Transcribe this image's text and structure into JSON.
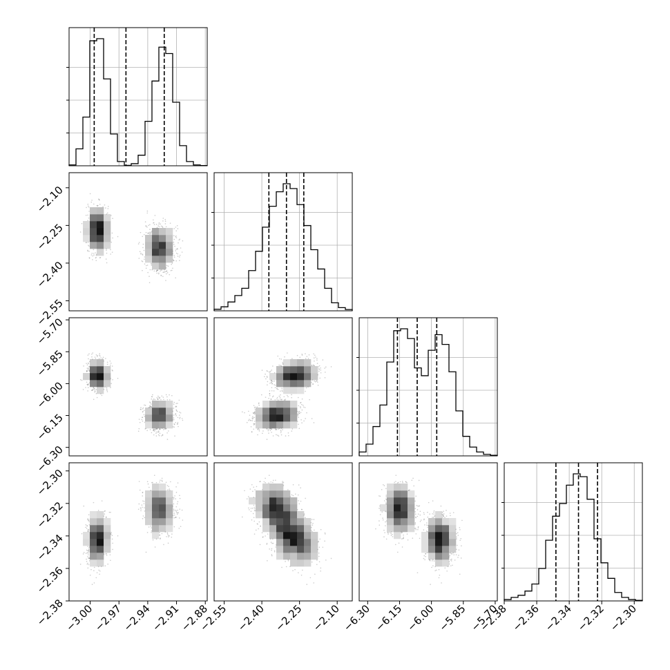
{
  "chart_data": {
    "type": "corner",
    "grid": true,
    "params": [
      {
        "range": [
          -3.022,
          -2.878
        ],
        "ticks": [
          -3.0,
          -2.97,
          -2.94,
          -2.91,
          -2.88
        ],
        "tick_labels": [
          "−3.00",
          "−2.97",
          "−2.94",
          "−2.91",
          "−2.88"
        ],
        "quantiles": [
          -2.9958,
          -2.9627,
          -2.9228
        ],
        "modes": [
          {
            "m": -2.992,
            "s": 0.0055,
            "w": 1
          },
          {
            "m": -2.928,
            "s": 0.0075,
            "w": 1
          }
        ],
        "hist": {
          "edges": [
            -3.022,
            -3.0148,
            -3.0076,
            -3.0004,
            -2.9932,
            -2.986,
            -2.9788,
            -2.9716,
            -2.9644,
            -2.9572,
            -2.95,
            -2.9428,
            -2.9356,
            -2.9284,
            -2.9212,
            -2.914,
            -2.9068,
            -2.8996,
            -2.8924,
            -2.8852,
            -2.878
          ],
          "counts": [
            4,
            80,
            230,
            590,
            600,
            410,
            150,
            20,
            2,
            10,
            50,
            210,
            400,
            560,
            530,
            300,
            95,
            20,
            4,
            1
          ]
        }
      },
      {
        "range": [
          -2.59,
          -2.04
        ],
        "ticks": [
          -2.55,
          -2.4,
          -2.25,
          -2.1
        ],
        "tick_labels": [
          "−2.55",
          "−2.40",
          "−2.25",
          "−2.10"
        ],
        "quantiles": [
          -2.372,
          -2.302,
          -2.233
        ],
        "modes": [
          {
            "m": -2.3,
            "s": 0.068,
            "w": 1
          }
        ],
        "hist": {
          "edges": [
            -2.59,
            -2.5625,
            -2.535,
            -2.5075,
            -2.48,
            -2.4525,
            -2.425,
            -2.3975,
            -2.37,
            -2.3425,
            -2.315,
            -2.2875,
            -2.26,
            -2.2325,
            -2.205,
            -2.1775,
            -2.15,
            -2.1225,
            -2.095,
            -2.0675,
            -2.04
          ],
          "counts": [
            10,
            25,
            55,
            95,
            140,
            250,
            370,
            520,
            650,
            740,
            790,
            760,
            660,
            530,
            380,
            260,
            140,
            50,
            20,
            8
          ]
        }
      },
      {
        "range": [
          -6.34,
          -5.69
        ],
        "ticks": [
          -6.3,
          -6.15,
          -6.0,
          -5.85,
          -5.7
        ],
        "tick_labels": [
          "−6.30",
          "−6.15",
          "−6.00",
          "−5.85",
          "−5.70"
        ],
        "quantiles": [
          -6.16,
          -6.067,
          -5.975
        ],
        "modes": [
          {
            "m": -6.15,
            "s": 0.04,
            "w": 1
          },
          {
            "m": -5.97,
            "s": 0.04,
            "w": 1
          }
        ],
        "hist": {
          "edges": [
            -6.34,
            -6.3075,
            -6.275,
            -6.2425,
            -6.21,
            -6.1775,
            -6.145,
            -6.1125,
            -6.08,
            -6.0475,
            -6.015,
            -5.9825,
            -5.95,
            -5.9175,
            -5.885,
            -5.8525,
            -5.82,
            -5.7875,
            -5.755,
            -5.7225,
            -5.69
          ],
          "counts": [
            20,
            60,
            150,
            260,
            480,
            640,
            650,
            600,
            450,
            410,
            540,
            620,
            570,
            430,
            230,
            100,
            45,
            20,
            8,
            3
          ]
        }
      },
      {
        "range": [
          -2.38,
          -2.295
        ],
        "ticks": [
          -2.38,
          -2.36,
          -2.34,
          -2.32,
          -2.3
        ],
        "tick_labels": [
          "−2.38",
          "−2.36",
          "−2.34",
          "−2.32",
          "−2.30"
        ],
        "quantiles": [
          -2.3482,
          -2.3343,
          -2.3226
        ],
        "modes": [
          {
            "m": -2.335,
            "s": 0.009,
            "w": 1
          }
        ],
        "hist": {
          "edges": [
            -2.38,
            -2.37575,
            -2.3715,
            -2.36725,
            -2.363,
            -2.35875,
            -2.3545,
            -2.35025,
            -2.346,
            -2.34175,
            -2.3375,
            -2.33325,
            -2.329,
            -2.32475,
            -2.3205,
            -2.31625,
            -2.312,
            -2.30775,
            -2.3035,
            -2.29925,
            -2.295
          ],
          "counts": [
            10,
            25,
            40,
            70,
            120,
            230,
            430,
            600,
            690,
            820,
            900,
            880,
            720,
            440,
            270,
            160,
            60,
            25,
            10,
            4
          ]
        }
      }
    ],
    "pairs": [
      {
        "row": 1,
        "col": 0,
        "cov": [
          [
            3e-05,
            0.0
          ],
          [
            0.0,
            0.0025
          ]
        ],
        "means_y": [
          -2.27,
          -2.34
        ],
        "tilt": 0.15
      },
      {
        "row": 2,
        "col": 0,
        "means_y": [
          -5.96,
          -6.15
        ],
        "tilt": -0.05
      },
      {
        "row": 2,
        "col": 1,
        "clusters": [
          {
            "x": -2.33,
            "y": -6.14
          },
          {
            "x": -2.26,
            "y": -5.97
          }
        ],
        "corr": 0.6
      },
      {
        "row": 3,
        "col": 0,
        "means_y": [
          -2.341,
          -2.326
        ],
        "tilt": 0.45
      },
      {
        "row": 3,
        "col": 1,
        "clusters": [
          {
            "x": -2.3,
            "y": -2.334
          }
        ],
        "corr": -0.45
      },
      {
        "row": 3,
        "col": 2,
        "clusters": [
          {
            "x": -6.15,
            "y": -2.328
          },
          {
            "x": -5.98,
            "y": -2.339
          }
        ],
        "corr": -0.3
      }
    ]
  }
}
